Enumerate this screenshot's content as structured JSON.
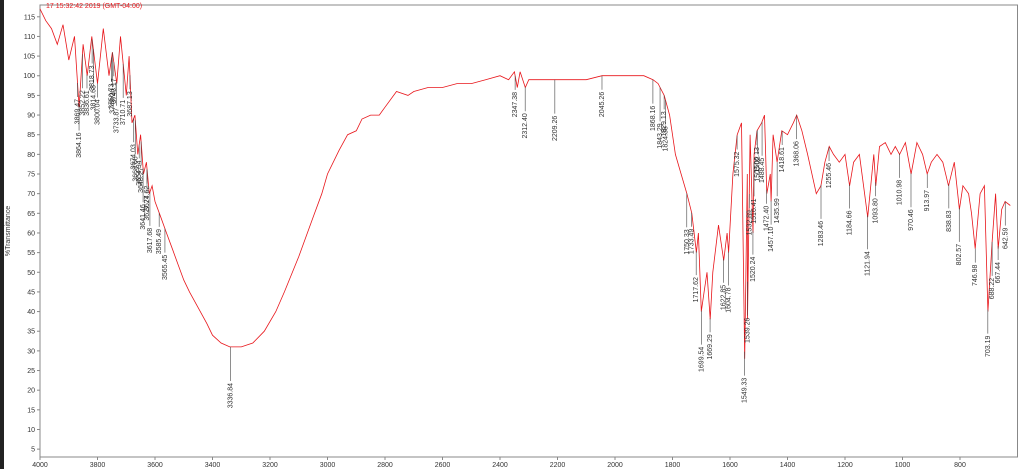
{
  "chart_data": {
    "type": "line",
    "title": "17 15:32:42 2019 (GMT-04:00)",
    "y_label": "%Transmittance",
    "color": "#e8161b",
    "xlim": [
      4000,
      600
    ],
    "ylim": [
      3,
      118
    ],
    "xticks": [
      4000,
      3800,
      3600,
      3400,
      3200,
      3000,
      2800,
      2600,
      2400,
      2200,
      2000,
      1800,
      1600,
      1400,
      1200,
      1000,
      800
    ],
    "yticks": [
      5,
      10,
      15,
      20,
      25,
      30,
      35,
      40,
      45,
      50,
      55,
      60,
      65,
      70,
      75,
      80,
      85,
      90,
      95,
      100,
      105,
      110,
      115
    ],
    "x": [
      4000,
      3980,
      3960,
      3940,
      3920,
      3900,
      3880,
      3864,
      3850,
      3836,
      3820,
      3800,
      3780,
      3760,
      3748,
      3733,
      3720,
      3700,
      3690,
      3680,
      3670,
      3660,
      3650,
      3640,
      3630,
      3620,
      3610,
      3600,
      3580,
      3560,
      3540,
      3520,
      3500,
      3480,
      3450,
      3420,
      3400,
      3370,
      3340,
      3300,
      3260,
      3220,
      3180,
      3150,
      3100,
      3050,
      3020,
      3000,
      2960,
      2930,
      2900,
      2880,
      2850,
      2820,
      2800,
      2760,
      2720,
      2700,
      2650,
      2600,
      2550,
      2500,
      2450,
      2400,
      2370,
      2350,
      2340,
      2330,
      2312,
      2300,
      2250,
      2209,
      2150,
      2100,
      2045,
      2000,
      1950,
      1900,
      1868,
      1850,
      1843,
      1829,
      1810,
      1790,
      1770,
      1750,
      1733,
      1717,
      1710,
      1700,
      1690,
      1680,
      1669,
      1660,
      1640,
      1622,
      1610,
      1605,
      1590,
      1575,
      1560,
      1549,
      1540,
      1539,
      1530,
      1520,
      1516,
      1506,
      1490,
      1480,
      1472,
      1460,
      1457,
      1450,
      1436,
      1420,
      1400,
      1380,
      1368,
      1350,
      1330,
      1300,
      1284,
      1270,
      1255,
      1240,
      1220,
      1200,
      1184,
      1170,
      1150,
      1121,
      1100,
      1093,
      1080,
      1060,
      1040,
      1025,
      1010,
      990,
      970,
      950,
      930,
      914,
      900,
      880,
      860,
      840,
      820,
      802,
      790,
      770,
      760,
      747,
      730,
      715,
      703,
      688,
      676,
      667,
      655,
      643,
      625
    ],
    "y": [
      117,
      114,
      112,
      108,
      113,
      104,
      110,
      92,
      108,
      100,
      110,
      98,
      112,
      100,
      106,
      98,
      110,
      95,
      105,
      88,
      90,
      80,
      85,
      75,
      78,
      70,
      72,
      68,
      64,
      60,
      56,
      52,
      48,
      45,
      41,
      37,
      34,
      32,
      31,
      31,
      32,
      35,
      40,
      45,
      54,
      64,
      70,
      75,
      81,
      85,
      86,
      89,
      90,
      90,
      92,
      96,
      95,
      96,
      97,
      97,
      98,
      98,
      99,
      100,
      99,
      101,
      97,
      101,
      97,
      99,
      99,
      99,
      99,
      99,
      100,
      100,
      100,
      100,
      99,
      98,
      97,
      95,
      90,
      80,
      75,
      70,
      65,
      55,
      60,
      40,
      45,
      50,
      38,
      50,
      62,
      53,
      60,
      55,
      75,
      85,
      88,
      28,
      75,
      38,
      85,
      60,
      80,
      86,
      88,
      90,
      70,
      75,
      68,
      85,
      78,
      86,
      85,
      88,
      90,
      86,
      80,
      70,
      72,
      78,
      82,
      80,
      78,
      80,
      72,
      78,
      80,
      64,
      80,
      72,
      82,
      83,
      80,
      82,
      80,
      83,
      75,
      83,
      80,
      75,
      78,
      80,
      78,
      72,
      78,
      66,
      72,
      70,
      65,
      56,
      70,
      72,
      40,
      58,
      70,
      56,
      66,
      68,
      67
    ],
    "peaks": {
      "x": [
        3869.47,
        3864.16,
        3852.22,
        3836.61,
        3818.73,
        3814.63,
        3800.04,
        3750.73,
        3748.2,
        3743.17,
        3733.87,
        3710.71,
        3687.13,
        3674.03,
        3668.66,
        3654.94,
        3648.27,
        3641.46,
        3627.62,
        3627.74,
        3617.68,
        3585.49,
        3565.45,
        3336.84,
        2347.38,
        2312.4,
        2209.26,
        2045.26,
        1868.16,
        1843.29,
        1829.13,
        1824.38,
        1750.33,
        1733.49,
        1717.62,
        1699.54,
        1669.29,
        1622.85,
        1604.78,
        1575.32,
        1549.33,
        1539.26,
        1532.89,
        1520.24,
        1516.41,
        1506.13,
        1505.02,
        1488.45,
        1472.4,
        1457.1,
        1435.99,
        1418.61,
        1368.06,
        1283.46,
        1255.46,
        1184.66,
        1121.94,
        1093.8,
        1010.98,
        970.46,
        913.97,
        838.83,
        802.57,
        746.98,
        703.19,
        688.22,
        667.44,
        642.59
      ],
      "labels": [
        "3869.47",
        "3864.16",
        "3852.22",
        "3836.61",
        "3818.73",
        "3814.63",
        "3800.04",
        "3750.73",
        "3748.20",
        "3743.17",
        "3733.87",
        "3710.71",
        "3687.13",
        "3674.03",
        "3668.66",
        "3654.94",
        "3648.27",
        "3641.46",
        "3627.62",
        "3627.74",
        "3617.68",
        "3585.49",
        "3565.45",
        "3336.84",
        "2347.38",
        "2312.40",
        "2209.26",
        "2045.26",
        "1868.16",
        "1843.29",
        "1829.13",
        "1824.38",
        "1750.33",
        "1733.49",
        "1717.62",
        "1699.54",
        "1669.29",
        "1622.85",
        "1604.78",
        "1575.32",
        "1549.33",
        "1539.26",
        "1532.89",
        "1520.24",
        "1516.41",
        "1506.13",
        "1505.02",
        "1488.45",
        "1472.40",
        "1457.10",
        "1435.99",
        "1418.61",
        "1368.06",
        "1283.46",
        "1255.46",
        "1184.66",
        "1121.94",
        "1093.80",
        "1010.98",
        "970.46",
        "913.97",
        "838.83",
        "802.57",
        "746.98",
        "703.19",
        "688.22",
        "667.44",
        "642.59"
      ]
    }
  }
}
